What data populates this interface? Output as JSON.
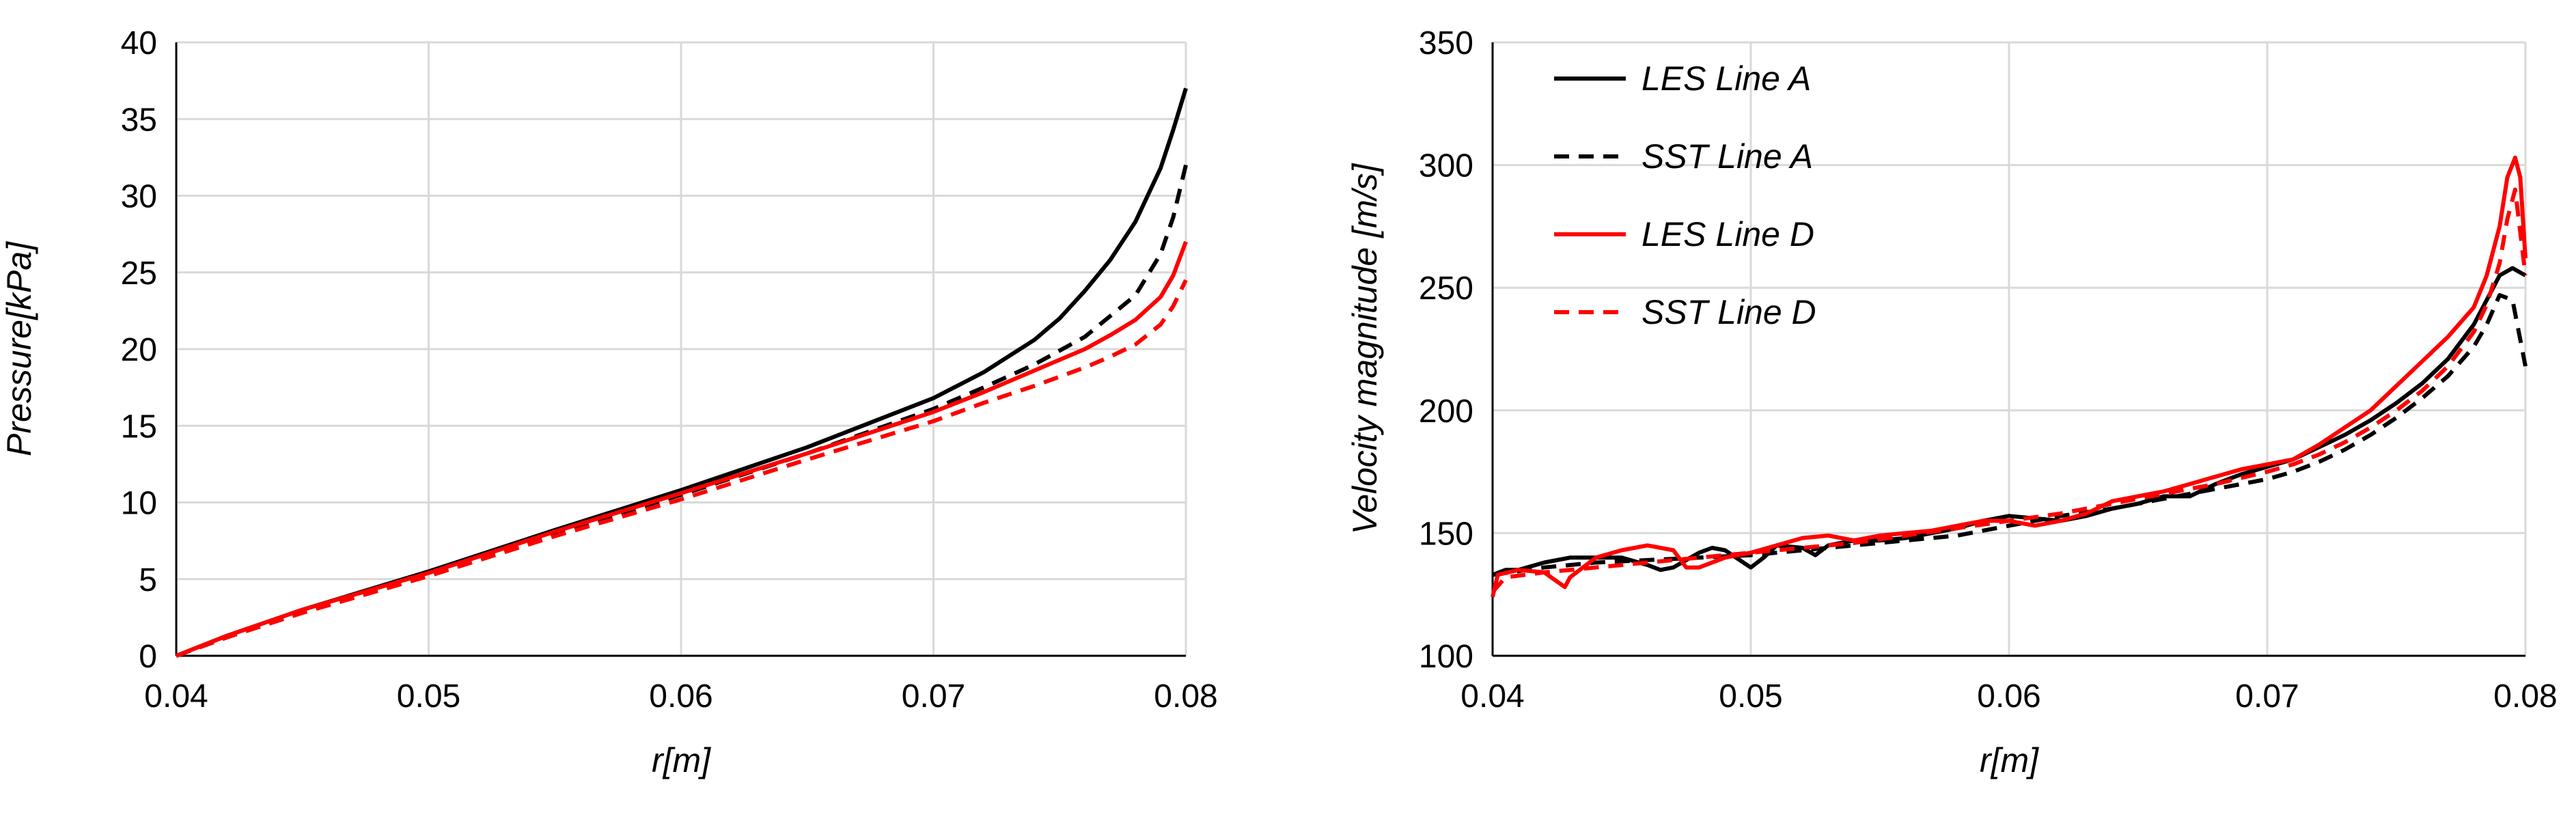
{
  "chart_data": [
    {
      "type": "line",
      "title": "",
      "xlabel": "r[m]",
      "ylabel": "Pressure[kPa]",
      "xlim": [
        0.04,
        0.08
      ],
      "ylim": [
        0,
        40
      ],
      "xticks": [
        0.04,
        0.05,
        0.06,
        0.07,
        0.08
      ],
      "xtick_labels": [
        "0.04",
        "0.05",
        "0.06",
        "0.07",
        "0.08"
      ],
      "yticks": [
        0,
        5,
        10,
        15,
        20,
        25,
        30,
        35,
        40
      ],
      "ytick_labels": [
        "0",
        "5",
        "10",
        "15",
        "20",
        "25",
        "30",
        "35",
        "40"
      ],
      "grid": true,
      "legend": "none",
      "series": [
        {
          "color": "#000000",
          "dash": "solid",
          "x": [
            0.04,
            0.042,
            0.045,
            0.05,
            0.055,
            0.06,
            0.065,
            0.07,
            0.072,
            0.074,
            0.075,
            0.076,
            0.077,
            0.078,
            0.079,
            0.0795,
            0.08
          ],
          "y": [
            0,
            1.3,
            3.0,
            5.5,
            8.2,
            10.8,
            13.6,
            16.8,
            18.5,
            20.6,
            22.0,
            23.8,
            25.8,
            28.3,
            31.8,
            34.3,
            37.0
          ]
        },
        {
          "color": "#000000",
          "dash": "dashed",
          "x": [
            0.04,
            0.042,
            0.045,
            0.05,
            0.055,
            0.06,
            0.065,
            0.07,
            0.072,
            0.074,
            0.076,
            0.078,
            0.079,
            0.0795,
            0.08
          ],
          "y": [
            0,
            1.2,
            2.9,
            5.3,
            8.0,
            10.5,
            13.2,
            16.1,
            17.5,
            19.0,
            20.8,
            23.5,
            26.2,
            28.6,
            32.0
          ]
        },
        {
          "color": "#ff0000",
          "dash": "solid",
          "x": [
            0.04,
            0.042,
            0.045,
            0.05,
            0.055,
            0.06,
            0.065,
            0.07,
            0.072,
            0.074,
            0.076,
            0.077,
            0.078,
            0.079,
            0.0795,
            0.08
          ],
          "y": [
            0,
            1.3,
            3.0,
            5.4,
            8.1,
            10.6,
            13.2,
            15.9,
            17.2,
            18.6,
            20.0,
            20.9,
            21.9,
            23.4,
            24.8,
            27.0
          ]
        },
        {
          "color": "#ff0000",
          "dash": "dashed",
          "x": [
            0.04,
            0.042,
            0.045,
            0.05,
            0.055,
            0.06,
            0.065,
            0.07,
            0.072,
            0.074,
            0.076,
            0.077,
            0.078,
            0.079,
            0.0795,
            0.08
          ],
          "y": [
            0,
            1.2,
            2.8,
            5.2,
            7.8,
            10.2,
            12.8,
            15.3,
            16.5,
            17.6,
            18.8,
            19.5,
            20.3,
            21.6,
            22.8,
            24.5
          ]
        }
      ]
    },
    {
      "type": "line",
      "title": "",
      "xlabel": "r[m]",
      "ylabel": "Velocity magnitude [m/s]",
      "xlim": [
        0.04,
        0.08
      ],
      "ylim": [
        100,
        350
      ],
      "xticks": [
        0.04,
        0.05,
        0.06,
        0.07,
        0.08
      ],
      "xtick_labels": [
        "0.04",
        "0.05",
        "0.06",
        "0.07",
        "0.08"
      ],
      "yticks": [
        100,
        150,
        200,
        250,
        300,
        350
      ],
      "ytick_labels": [
        "100",
        "150",
        "200",
        "250",
        "300",
        "350"
      ],
      "grid": true,
      "legend": "top-left",
      "series": [
        {
          "name": "LES Line A",
          "color": "#000000",
          "dash": "solid",
          "x": [
            0.04,
            0.0405,
            0.041,
            0.042,
            0.043,
            0.044,
            0.045,
            0.046,
            0.0465,
            0.047,
            0.048,
            0.0485,
            0.049,
            0.05,
            0.0505,
            0.051,
            0.052,
            0.0525,
            0.053,
            0.054,
            0.055,
            0.056,
            0.057,
            0.058,
            0.059,
            0.06,
            0.061,
            0.062,
            0.063,
            0.064,
            0.065,
            0.066,
            0.067,
            0.068,
            0.069,
            0.07,
            0.071,
            0.072,
            0.073,
            0.074,
            0.075,
            0.076,
            0.077,
            0.078,
            0.0785,
            0.079,
            0.0795,
            0.08
          ],
          "y": [
            133,
            135,
            135,
            138,
            140,
            140,
            140,
            137,
            135,
            136,
            142,
            144,
            143,
            136,
            140,
            145,
            144,
            141,
            145,
            147,
            147,
            148,
            150,
            152,
            155,
            157,
            156,
            155,
            157,
            160,
            162,
            165,
            165,
            170,
            174,
            177,
            180,
            185,
            190,
            196,
            203,
            211,
            221,
            235,
            245,
            255,
            258,
            255
          ]
        },
        {
          "name": "SST Line A",
          "color": "#000000",
          "dash": "dashed",
          "x": [
            0.04,
            0.042,
            0.044,
            0.046,
            0.048,
            0.05,
            0.052,
            0.054,
            0.056,
            0.058,
            0.06,
            0.062,
            0.064,
            0.066,
            0.068,
            0.07,
            0.071,
            0.072,
            0.073,
            0.074,
            0.075,
            0.076,
            0.077,
            0.078,
            0.0785,
            0.079,
            0.0795,
            0.08
          ],
          "y": [
            133,
            136,
            138,
            139,
            140,
            141,
            143,
            145,
            147,
            149,
            153,
            157,
            160,
            164,
            168,
            172,
            175,
            179,
            184,
            190,
            197,
            205,
            214,
            226,
            235,
            247,
            245,
            218
          ]
        },
        {
          "name": "LES Line D",
          "color": "#ff0000",
          "dash": "solid",
          "x": [
            0.04,
            0.0402,
            0.041,
            0.042,
            0.0428,
            0.043,
            0.044,
            0.045,
            0.046,
            0.047,
            0.0475,
            0.048,
            0.049,
            0.05,
            0.051,
            0.052,
            0.053,
            0.054,
            0.055,
            0.056,
            0.057,
            0.058,
            0.059,
            0.06,
            0.061,
            0.062,
            0.063,
            0.064,
            0.065,
            0.066,
            0.067,
            0.068,
            0.069,
            0.07,
            0.071,
            0.072,
            0.073,
            0.074,
            0.075,
            0.076,
            0.077,
            0.078,
            0.0785,
            0.079,
            0.0793,
            0.0796,
            0.0798,
            0.08
          ],
          "y": [
            124,
            133,
            135,
            134,
            128,
            132,
            140,
            143,
            145,
            143,
            136,
            136,
            140,
            142,
            145,
            148,
            149,
            147,
            149,
            150,
            151,
            153,
            155,
            155,
            153,
            155,
            158,
            163,
            165,
            167,
            170,
            173,
            176,
            178,
            180,
            186,
            193,
            200,
            210,
            220,
            230,
            242,
            255,
            275,
            295,
            303,
            295,
            262
          ]
        },
        {
          "name": "SST Line D",
          "color": "#ff0000",
          "dash": "dashed",
          "x": [
            0.04,
            0.0405,
            0.042,
            0.044,
            0.046,
            0.048,
            0.05,
            0.052,
            0.054,
            0.056,
            0.058,
            0.06,
            0.062,
            0.064,
            0.066,
            0.068,
            0.07,
            0.071,
            0.072,
            0.073,
            0.074,
            0.075,
            0.076,
            0.077,
            0.078,
            0.0785,
            0.079,
            0.0793,
            0.0796,
            0.08
          ],
          "y": [
            126,
            132,
            134,
            136,
            138,
            140,
            142,
            144,
            146,
            149,
            152,
            155,
            158,
            162,
            166,
            170,
            175,
            178,
            182,
            187,
            193,
            200,
            208,
            218,
            232,
            243,
            260,
            278,
            290,
            255
          ]
        }
      ]
    }
  ]
}
